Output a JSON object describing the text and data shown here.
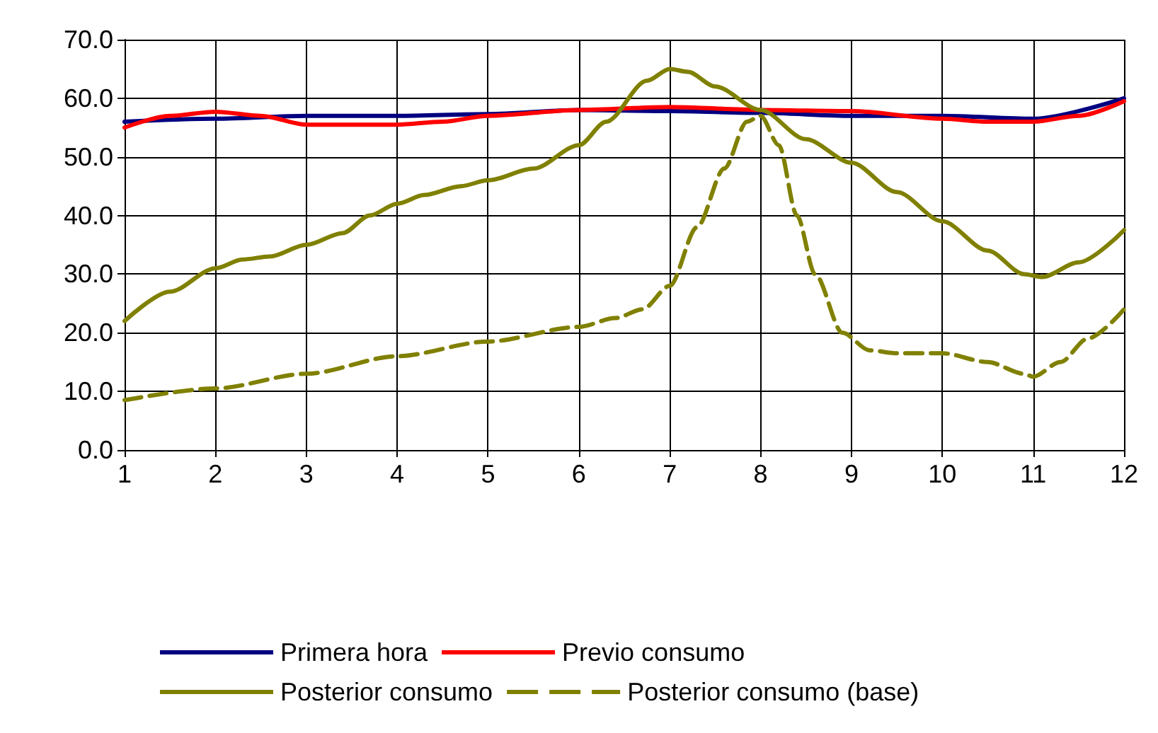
{
  "chart_data": {
    "type": "line",
    "xlim": [
      1,
      12
    ],
    "xticks": [
      1,
      2,
      3,
      4,
      5,
      6,
      7,
      8,
      9,
      10,
      11,
      12
    ],
    "ylim": [
      0,
      70
    ],
    "yticks": [
      {
        "value": 0,
        "label": "0.0"
      },
      {
        "value": 10,
        "label": "10.0"
      },
      {
        "value": 20,
        "label": "20.0"
      },
      {
        "value": 30,
        "label": "30.0"
      },
      {
        "value": 40,
        "label": "40.0"
      },
      {
        "value": 50,
        "label": "50.0"
      },
      {
        "value": 60,
        "label": "60.0"
      },
      {
        "value": 70,
        "label": "70.0"
      }
    ],
    "grid": true,
    "legend": "bottom",
    "marker": "none",
    "series": [
      {
        "name": "Primera hora",
        "color": "#000080",
        "line_style": "solid",
        "x": [
          1,
          2,
          3,
          4,
          5,
          6,
          7,
          8,
          9,
          10,
          11,
          12
        ],
        "values": [
          56,
          56.5,
          57,
          57,
          57.3,
          58,
          57.8,
          57.5,
          57,
          57,
          56.5,
          60
        ]
      },
      {
        "name": "Previo consumo",
        "color": "#ff0000",
        "line_style": "solid",
        "x": [
          1,
          1.5,
          2,
          2.5,
          3,
          4,
          4.5,
          5,
          6,
          7,
          8,
          9,
          10,
          10.5,
          11,
          11.5,
          12
        ],
        "values": [
          55,
          57,
          57.7,
          57,
          55.5,
          55.5,
          56,
          57,
          58,
          58.5,
          58,
          57.8,
          56.5,
          56,
          56,
          57,
          59.5
        ]
      },
      {
        "name": "Posterior consumo",
        "color": "#808000",
        "line_style": "solid",
        "x": [
          1,
          1.5,
          2,
          2.3,
          2.6,
          3,
          3.4,
          3.7,
          4,
          4.3,
          4.7,
          5,
          5.5,
          6,
          6.3,
          6.75,
          7,
          7.2,
          7.5,
          8,
          8.5,
          9,
          9.5,
          10,
          10.5,
          10.9,
          11.1,
          11.5,
          12
        ],
        "values": [
          22,
          27,
          31,
          32.5,
          33,
          35,
          37,
          40,
          42,
          43.5,
          45,
          46,
          48,
          52,
          56,
          63,
          65,
          64.5,
          62,
          58,
          53,
          49,
          44,
          39,
          34,
          30,
          29.5,
          32,
          37.5
        ]
      },
      {
        "name": "Posterior consumo (base)",
        "color": "#808000",
        "line_style": "dashed",
        "x": [
          1,
          2,
          3,
          4,
          5,
          6,
          6.4,
          6.7,
          7,
          7.3,
          7.6,
          7.85,
          8,
          8.2,
          8.4,
          8.6,
          8.9,
          9.2,
          9.5,
          10,
          10.5,
          10.9,
          11,
          11.3,
          11.6,
          12
        ],
        "values": [
          8.5,
          10.5,
          13,
          16,
          18.5,
          21,
          22.5,
          24,
          28,
          38,
          48,
          56,
          57,
          52,
          40,
          30,
          20,
          17,
          16.5,
          16.5,
          15,
          13,
          12.5,
          15,
          19,
          24
        ]
      }
    ]
  }
}
